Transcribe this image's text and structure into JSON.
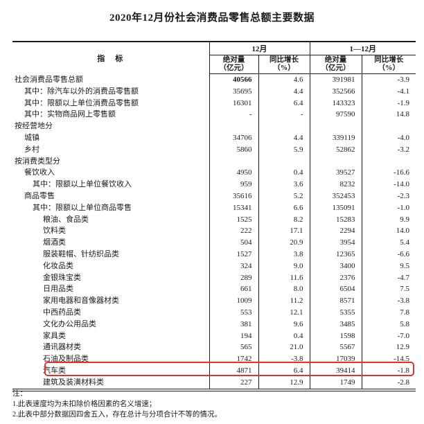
{
  "title": "2020年12月份社会消费品零售总额主要数据",
  "table": {
    "header": {
      "indicator_label": "指　标",
      "col_groups": [
        {
          "label": "12月",
          "sub": [
            {
              "l1": "绝对量",
              "l2": "（亿元）"
            },
            {
              "l1": "同比增长",
              "l2": "（%）"
            }
          ]
        },
        {
          "label": "1—12月",
          "sub": [
            {
              "l1": "绝对量",
              "l2": "（亿元）"
            },
            {
              "l1": "同比增长",
              "l2": "（%）"
            }
          ]
        }
      ]
    },
    "rows": [
      {
        "label": "社会消费品零售总额",
        "indent": 0,
        "values": [
          "40566",
          "4.6",
          "391981",
          "-3.9"
        ],
        "bold_first": true
      },
      {
        "label": "其中：除汽车以外的消费品零售额",
        "indent": 1,
        "values": [
          "35695",
          "4.4",
          "352566",
          "-4.1"
        ]
      },
      {
        "label": "其中：限额以上单位消费品零售额",
        "indent": 1,
        "values": [
          "16301",
          "6.4",
          "143323",
          "-1.9"
        ]
      },
      {
        "label": "其中：实物商品网上零售额",
        "indent": 1,
        "values": [
          "-",
          "-",
          "97590",
          "14.8"
        ]
      },
      {
        "label": "按经营地分",
        "indent": 0,
        "values": [
          "",
          "",
          "",
          ""
        ],
        "section": true
      },
      {
        "label": "城镇",
        "indent": 1,
        "values": [
          "34706",
          "4.4",
          "339119",
          "-4.0"
        ]
      },
      {
        "label": "乡村",
        "indent": 1,
        "values": [
          "5860",
          "5.9",
          "52862",
          "-3.2"
        ]
      },
      {
        "label": "按消费类型分",
        "indent": 0,
        "values": [
          "",
          "",
          "",
          ""
        ],
        "section": true
      },
      {
        "label": "餐饮收入",
        "indent": 1,
        "values": [
          "4950",
          "0.4",
          "39527",
          "-16.6"
        ]
      },
      {
        "label": "其中：限额以上单位餐饮收入",
        "indent": 2,
        "values": [
          "959",
          "3.6",
          "8232",
          "-14.0"
        ]
      },
      {
        "label": "商品零售",
        "indent": 1,
        "values": [
          "35616",
          "5.2",
          "352453",
          "-2.3"
        ]
      },
      {
        "label": "其中：限额以上单位商品零售",
        "indent": 2,
        "values": [
          "15341",
          "6.6",
          "135091",
          "-1.0"
        ]
      },
      {
        "label": "粮油、食品类",
        "indent": 3,
        "values": [
          "1525",
          "8.2",
          "15283",
          "9.9"
        ]
      },
      {
        "label": "饮料类",
        "indent": 3,
        "values": [
          "222",
          "17.1",
          "2294",
          "14.0"
        ]
      },
      {
        "label": "烟酒类",
        "indent": 3,
        "values": [
          "504",
          "20.9",
          "3954",
          "5.4"
        ]
      },
      {
        "label": "服装鞋帽、针纺织品类",
        "indent": 3,
        "values": [
          "1527",
          "3.8",
          "12365",
          "-6.6"
        ]
      },
      {
        "label": "化妆品类",
        "indent": 3,
        "values": [
          "324",
          "9.0",
          "3400",
          "9.5"
        ]
      },
      {
        "label": "金银珠宝类",
        "indent": 3,
        "values": [
          "289",
          "11.6",
          "2376",
          "-4.7"
        ]
      },
      {
        "label": "日用品类",
        "indent": 3,
        "values": [
          "661",
          "8.0",
          "6504",
          "7.5"
        ]
      },
      {
        "label": "家用电器和音像器材类",
        "indent": 3,
        "values": [
          "1009",
          "11.2",
          "8571",
          "-3.8"
        ]
      },
      {
        "label": "中西药品类",
        "indent": 3,
        "values": [
          "553",
          "12.1",
          "5355",
          "7.8"
        ]
      },
      {
        "label": "文化办公用品类",
        "indent": 3,
        "values": [
          "381",
          "9.6",
          "3485",
          "5.8"
        ]
      },
      {
        "label": "家具类",
        "indent": 3,
        "values": [
          "194",
          "0.4",
          "1598",
          "-7.0"
        ]
      },
      {
        "label": "通讯器材类",
        "indent": 3,
        "values": [
          "565",
          "21.0",
          "5567",
          "12.9"
        ]
      },
      {
        "label": "石油及制品类",
        "indent": 3,
        "values": [
          "1742",
          "-3.8",
          "17039",
          "-14.5"
        ]
      },
      {
        "label": "汽车类",
        "indent": 3,
        "values": [
          "4871",
          "6.4",
          "39414",
          "-1.8"
        ],
        "highlighted": true
      },
      {
        "label": "建筑及装潢材料类",
        "indent": 3,
        "values": [
          "227",
          "12.9",
          "1749",
          "-2.8"
        ]
      }
    ]
  },
  "notes": {
    "heading": "注：",
    "items": [
      "1.此表速度均为未扣除价格因素的名义增速；",
      "2.此表中部分数据因四舍五入，存在总计与分项合计不等的情况。"
    ]
  },
  "highlight": {
    "color": "#e0312b",
    "target_row": "汽车类"
  }
}
